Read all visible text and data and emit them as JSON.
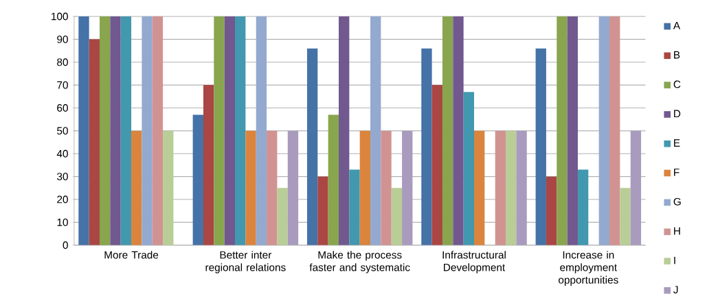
{
  "chart_data": {
    "type": "bar",
    "categories": [
      "More Trade",
      "Better inter regional relations",
      "Make the process faster and systematic",
      "Infrastructural Development",
      "Increase in employment opportunities"
    ],
    "series": [
      {
        "name": "A",
        "color": "#4572a7",
        "values": [
          100,
          57,
          86,
          86,
          86
        ]
      },
      {
        "name": "B",
        "color": "#aa4643",
        "values": [
          90,
          70,
          30,
          70,
          30
        ]
      },
      {
        "name": "C",
        "color": "#89a54e",
        "values": [
          100,
          100,
          57,
          100,
          100
        ]
      },
      {
        "name": "D",
        "color": "#71588f",
        "values": [
          100,
          100,
          100,
          100,
          100
        ]
      },
      {
        "name": "E",
        "color": "#4198af",
        "values": [
          100,
          100,
          33,
          67,
          33
        ]
      },
      {
        "name": "F",
        "color": "#db843d",
        "values": [
          50,
          50,
          50,
          50,
          0
        ]
      },
      {
        "name": "G",
        "color": "#93a9cf",
        "values": [
          100,
          100,
          100,
          0,
          100
        ]
      },
      {
        "name": "H",
        "color": "#d19392",
        "values": [
          100,
          50,
          50,
          50,
          100
        ]
      },
      {
        "name": "I",
        "color": "#b9cd96",
        "values": [
          50,
          25,
          25,
          50,
          25
        ]
      },
      {
        "name": "J",
        "color": "#a99bbd",
        "values": [
          0,
          50,
          50,
          50,
          50
        ]
      }
    ],
    "ylim": [
      0,
      100
    ],
    "yticks": [
      0,
      10,
      20,
      30,
      40,
      50,
      60,
      70,
      80,
      90,
      100
    ],
    "grid": "y",
    "legend": "right"
  }
}
